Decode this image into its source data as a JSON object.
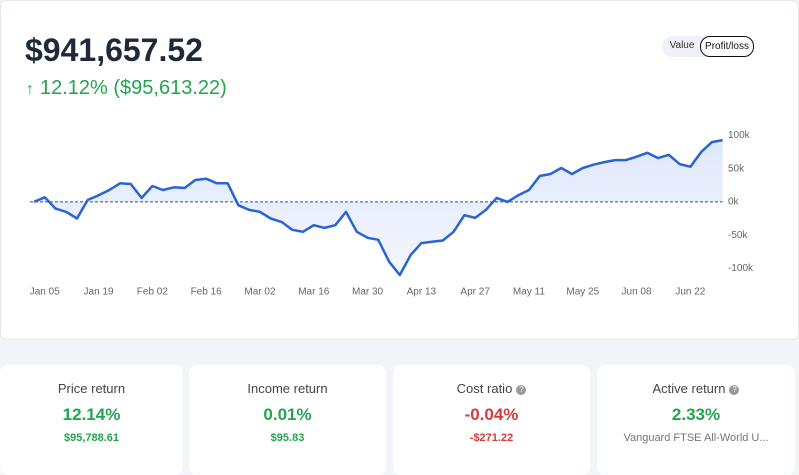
{
  "header": {
    "value": "$941,657.52",
    "change": "12.12% ($95,613.22)",
    "toggle": [
      "Value",
      "Profit/loss"
    ]
  },
  "chart": {
    "type": "line",
    "color": "#2a63d4",
    "categories": [
      null,
      "Jan 05",
      null,
      null,
      null,
      null,
      "Jan 19",
      null,
      null,
      null,
      null,
      "Feb 02",
      null,
      null,
      null,
      null,
      "Feb 16",
      null,
      null,
      null,
      null,
      "Mar 02",
      null,
      null,
      null,
      null,
      "Mar 16",
      null,
      null,
      null,
      null,
      "Mar 30",
      null,
      null,
      null,
      null,
      "Apr 13",
      null,
      null,
      null,
      null,
      "Apr 27",
      null,
      null,
      null,
      null,
      "May 11",
      null,
      null,
      null,
      null,
      "May 25",
      null,
      null,
      null,
      null,
      "Jun 08",
      null,
      null,
      null,
      null,
      "Jun 22",
      null,
      null,
      null
    ],
    "values": [
      0,
      7000,
      -10000,
      -15000,
      -25000,
      3000,
      10000,
      18000,
      28000,
      27000,
      6000,
      24000,
      18000,
      22000,
      21000,
      33000,
      35000,
      28000,
      28000,
      -5000,
      -12000,
      -15000,
      -25000,
      -30000,
      -42000,
      -45000,
      -35000,
      -39000,
      -35000,
      -15000,
      -45000,
      -54000,
      -57000,
      -90000,
      -110000,
      -80000,
      -62000,
      -60000,
      -58000,
      -45000,
      -20000,
      -24000,
      -12000,
      6000,
      0,
      10000,
      18000,
      39000,
      42000,
      51000,
      42000,
      51000,
      56000,
      60000,
      63000,
      63000,
      68000,
      74000,
      66000,
      71000,
      57000,
      53000,
      75000,
      90000,
      93000
    ],
    "ylim": [
      -125000,
      140000
    ],
    "yticks": [
      {
        "value": 100000,
        "label": "100k"
      },
      {
        "value": 50000,
        "label": "50k"
      },
      {
        "value": 0,
        "label": "0k"
      },
      {
        "value": -50000,
        "label": "-50k"
      },
      {
        "value": -100000,
        "label": "-100k"
      }
    ]
  },
  "cards": [
    {
      "title": "Price return",
      "value": "12.14%",
      "sub": "$95,788.61"
    },
    {
      "title": "Income return",
      "value": "0.01%",
      "sub": "$95.83"
    },
    {
      "title": "Cost ratio",
      "value": "-0.04%",
      "sub": "-$271.22"
    },
    {
      "title": "Active return",
      "value": "2.33%",
      "sub": "Vanguard FTSE All-World U..."
    }
  ]
}
